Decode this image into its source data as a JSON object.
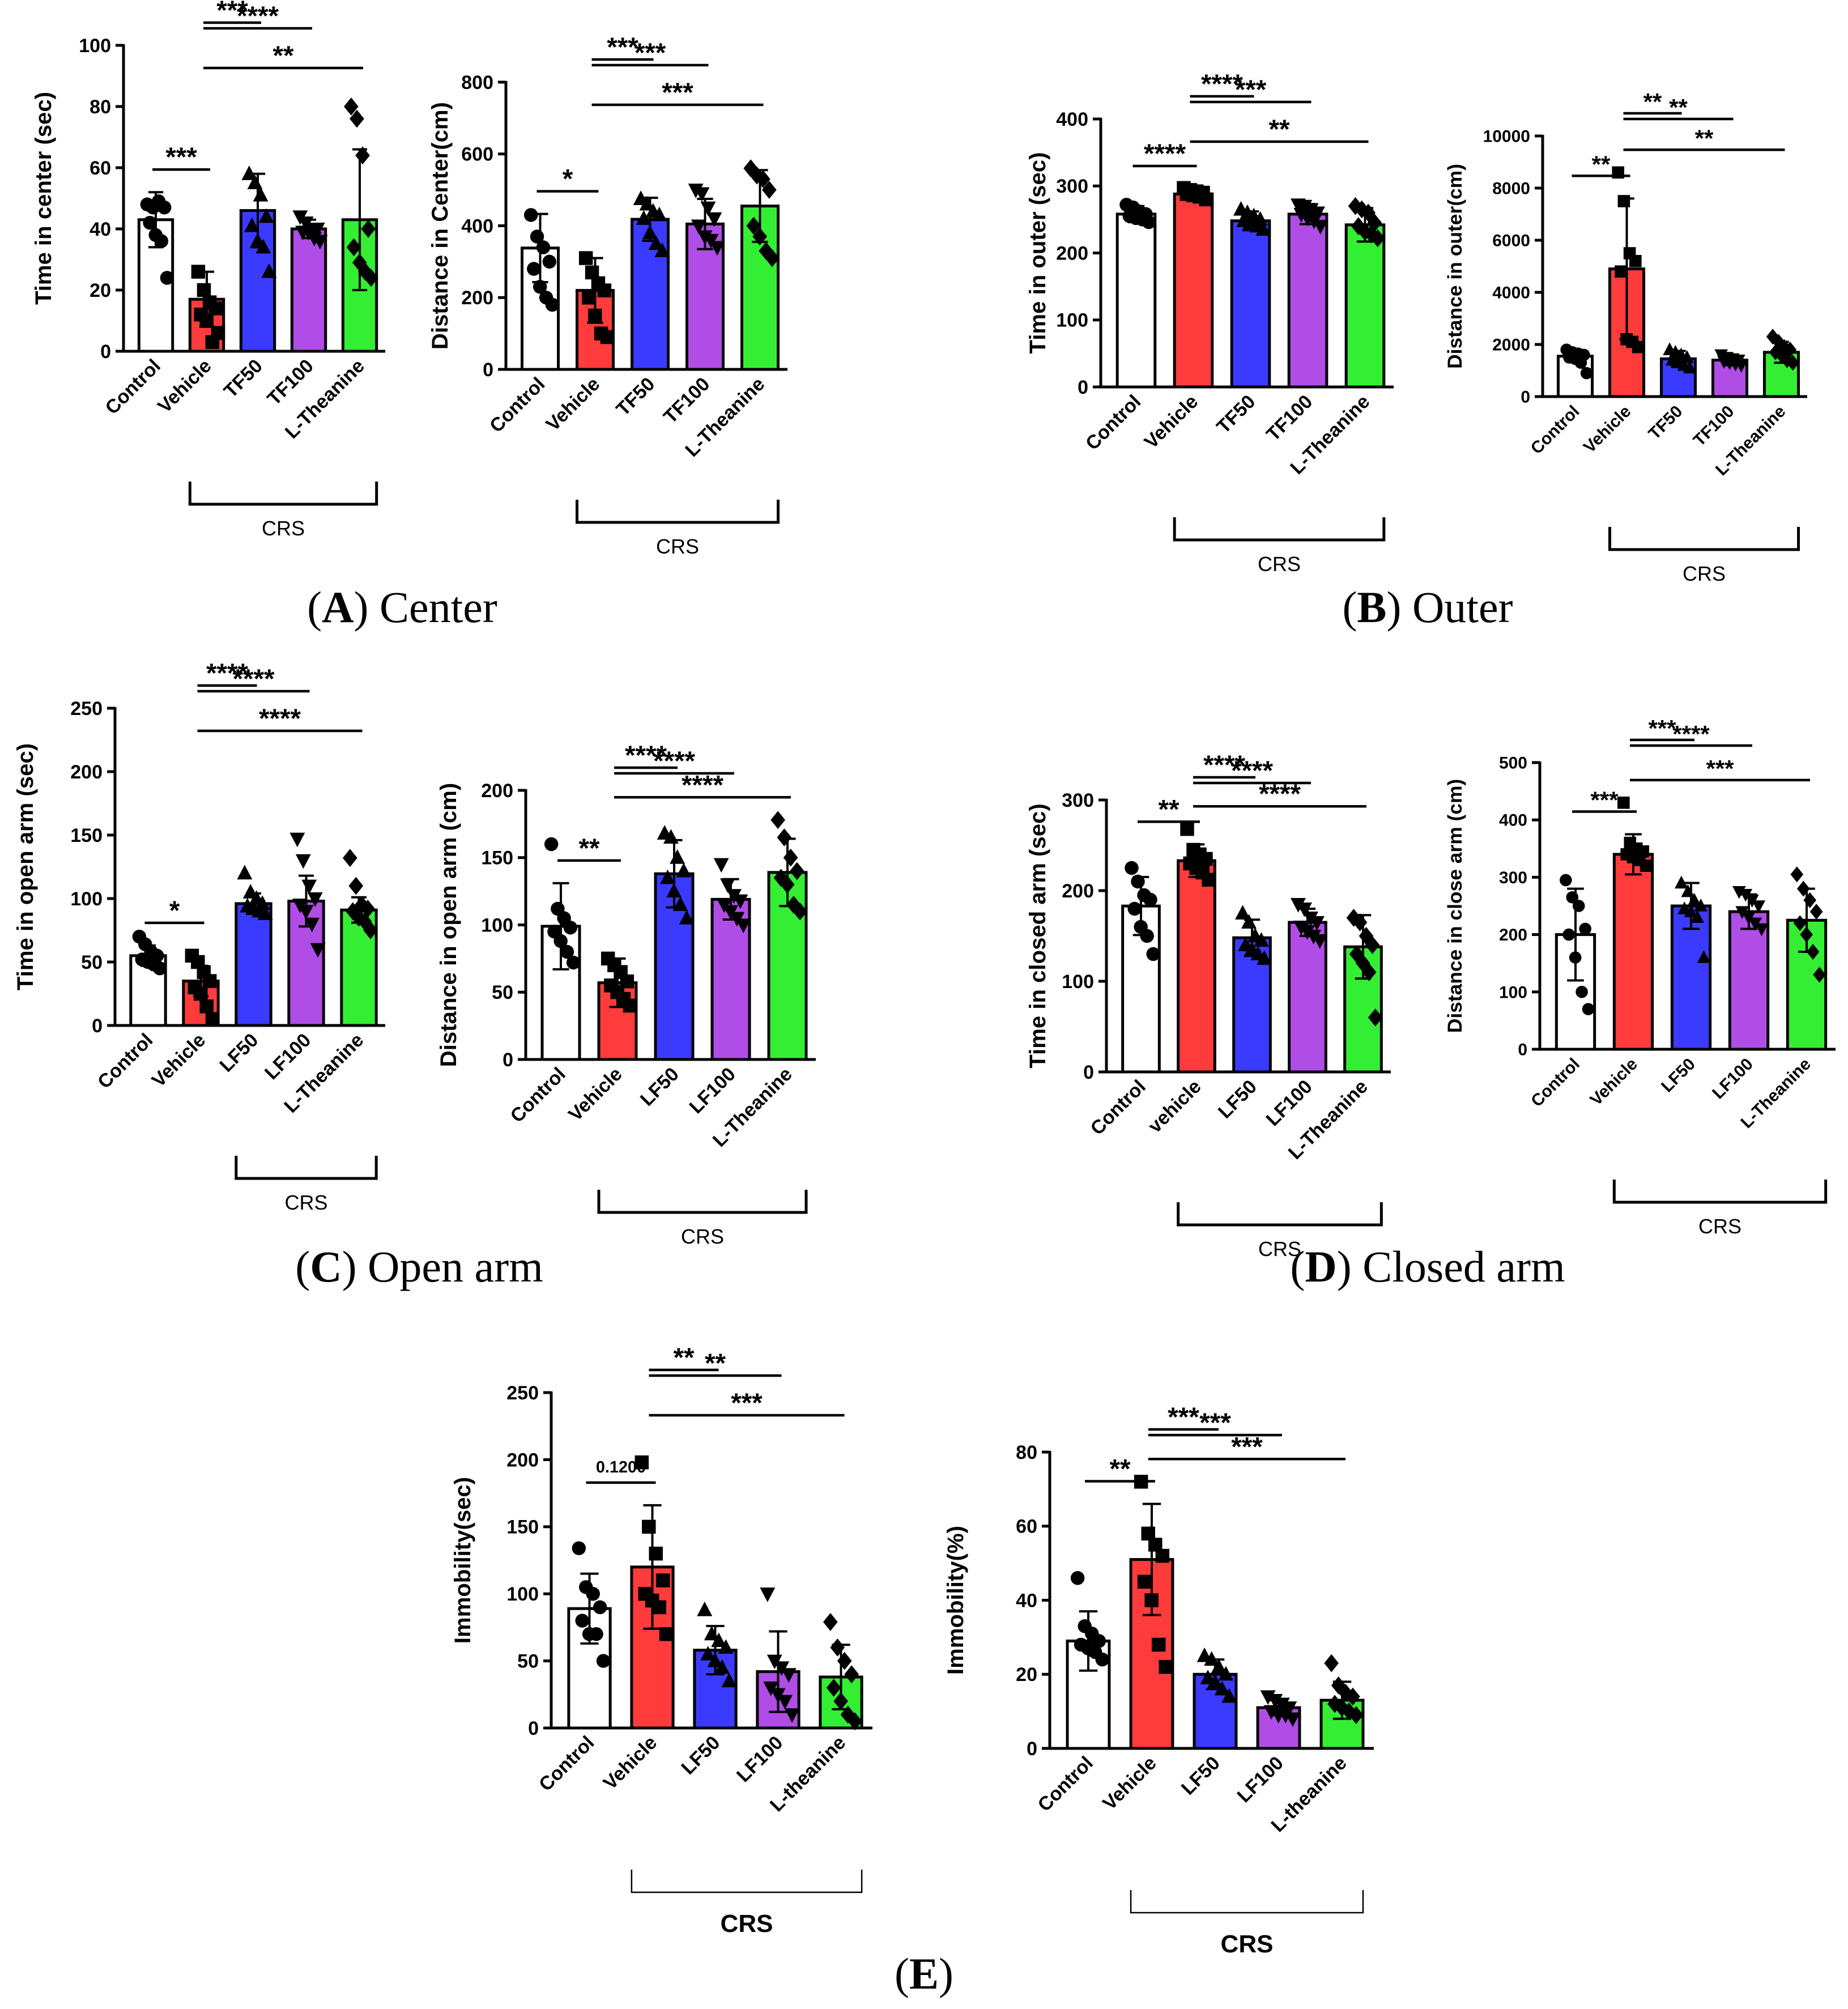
{
  "colors": {
    "Control": "#ffffff",
    "Vehicle": "#ff3b3b",
    "vehicle": "#ff3b3b",
    "TF50": "#3b3bff",
    "TF100": "#b04de6",
    "LF50": "#3b3bff",
    "LF100": "#b04de6",
    "L-Theanine": "#33ee33",
    "L-theanine": "#33ee33"
  },
  "captions": {
    "A": {
      "letter": "A",
      "title": "Center"
    },
    "B": {
      "letter": "B",
      "title": "Outer"
    },
    "C": {
      "letter": "C",
      "title": "Open arm"
    },
    "D": {
      "letter": "D",
      "title": "Closed arm"
    },
    "E": {
      "letter": "E",
      "title": ""
    }
  },
  "chart_data": [
    {
      "id": "A1",
      "panel": "A",
      "type": "bar",
      "ylabel": "Time in center (sec)",
      "ylim": [
        0,
        100
      ],
      "yticks": [
        0,
        20,
        40,
        60,
        80,
        100
      ],
      "categories": [
        "Control",
        "Vehicle",
        "TF50",
        "TF100",
        "L-Theanine"
      ],
      "values": [
        43,
        17,
        46,
        40,
        43
      ],
      "errors": [
        9,
        9,
        12,
        3,
        23
      ],
      "points": [
        [
          48,
          47,
          49,
          47,
          42,
          38,
          36,
          24
        ],
        [
          26,
          20,
          16,
          14,
          12,
          10,
          3,
          6
        ],
        [
          58,
          55,
          51,
          44,
          41,
          36,
          34,
          26
        ],
        [
          44,
          42,
          40,
          40,
          39,
          39,
          37,
          36
        ],
        [
          80,
          76,
          64,
          40,
          34,
          29,
          26,
          24
        ]
      ],
      "markers": [
        "circle",
        "square",
        "triangle",
        "triangle-down",
        "diamond"
      ],
      "group_label": "CRS",
      "group_range": [
        1,
        4
      ],
      "comparisons": [
        {
          "from": 0,
          "to": 1,
          "label": "***"
        },
        {
          "from": 1,
          "to": 2,
          "label": "***"
        },
        {
          "from": 1,
          "to": 3,
          "label": "****"
        },
        {
          "from": 1,
          "to": 4,
          "label": "**"
        }
      ]
    },
    {
      "id": "A2",
      "panel": "A",
      "type": "bar",
      "ylabel": "Distance in Center(cm)",
      "ylim": [
        0,
        800
      ],
      "yticks": [
        0,
        200,
        400,
        600,
        800
      ],
      "categories": [
        "Control",
        "Vehicle",
        "TF50",
        "TF100",
        "L-Theanine"
      ],
      "values": [
        338,
        220,
        418,
        405,
        455
      ],
      "errors": [
        95,
        90,
        60,
        70,
        100
      ],
      "points": [
        [
          430,
          370,
          340,
          300,
          280,
          230,
          200,
          180
        ],
        [
          310,
          270,
          240,
          220,
          200,
          150,
          100,
          90
        ],
        [
          475,
          460,
          440,
          430,
          420,
          380,
          350,
          330
        ],
        [
          500,
          490,
          450,
          420,
          400,
          370,
          360,
          340
        ],
        [
          560,
          540,
          530,
          500,
          400,
          370,
          330,
          310
        ]
      ],
      "markers": [
        "circle",
        "square",
        "triangle",
        "triangle-down",
        "diamond"
      ],
      "group_label": "CRS",
      "group_range": [
        1,
        4
      ],
      "comparisons": [
        {
          "from": 0,
          "to": 1,
          "label": "*"
        },
        {
          "from": 1,
          "to": 2,
          "label": "***"
        },
        {
          "from": 1,
          "to": 3,
          "label": "***"
        },
        {
          "from": 1,
          "to": 4,
          "label": "***"
        }
      ]
    },
    {
      "id": "B1",
      "panel": "B",
      "type": "bar",
      "ylabel": "Time in outer (sec)",
      "ylim": [
        0,
        400
      ],
      "yticks": [
        0,
        100,
        200,
        300,
        400
      ],
      "categories": [
        "Control",
        "Vehicle",
        "TF50",
        "TF100",
        "L-Theanine"
      ],
      "values": [
        258,
        288,
        248,
        258,
        242
      ],
      "errors": [
        12,
        8,
        14,
        15,
        25
      ],
      "points": [
        [
          272,
          268,
          262,
          258,
          255,
          252,
          250,
          246
        ],
        [
          297,
          294,
          292,
          290,
          288,
          286,
          284,
          280
        ],
        [
          265,
          260,
          255,
          250,
          248,
          245,
          240,
          235
        ],
        [
          272,
          270,
          265,
          260,
          258,
          252,
          248,
          240
        ],
        [
          270,
          265,
          260,
          245,
          240,
          232,
          228,
          222
        ]
      ],
      "markers": [
        "circle",
        "square",
        "triangle",
        "triangle-down",
        "diamond"
      ],
      "group_label": "CRS",
      "group_range": [
        1,
        4
      ],
      "comparisons": [
        {
          "from": 0,
          "to": 1,
          "label": "****"
        },
        {
          "from": 1,
          "to": 2,
          "label": "****"
        },
        {
          "from": 1,
          "to": 3,
          "label": "***"
        },
        {
          "from": 1,
          "to": 4,
          "label": "**"
        }
      ]
    },
    {
      "id": "B2",
      "panel": "B",
      "type": "bar",
      "ylabel": "Distance in outer(cm)",
      "ylim": [
        0,
        10000
      ],
      "yticks": [
        0,
        2000,
        4000,
        6000,
        8000,
        10000
      ],
      "categories": [
        "Control",
        "Vehicle",
        "TF50",
        "TF100",
        "L-Theanine"
      ],
      "values": [
        1550,
        4900,
        1450,
        1400,
        1700
      ],
      "errors": [
        200,
        2700,
        300,
        200,
        400
      ],
      "points": [
        [
          1800,
          1700,
          1650,
          1600,
          1500,
          1450,
          1300,
          900
        ],
        [
          8600,
          7500,
          5500,
          5200,
          4800,
          2200,
          2100,
          1900
        ],
        [
          1800,
          1700,
          1600,
          1500,
          1400,
          1300,
          1200,
          1100
        ],
        [
          1600,
          1500,
          1450,
          1400,
          1350,
          1300,
          1250,
          1200
        ],
        [
          2300,
          2100,
          1900,
          1800,
          1700,
          1600,
          1400,
          1300
        ]
      ],
      "markers": [
        "circle",
        "square",
        "triangle",
        "triangle-down",
        "diamond"
      ],
      "group_label": "CRS",
      "group_range": [
        1,
        4
      ],
      "comparisons": [
        {
          "from": 0,
          "to": 1,
          "label": "**"
        },
        {
          "from": 1,
          "to": 2,
          "label": "**"
        },
        {
          "from": 1,
          "to": 3,
          "label": "**"
        },
        {
          "from": 1,
          "to": 4,
          "label": "**"
        }
      ]
    },
    {
      "id": "C1",
      "panel": "C",
      "type": "bar",
      "ylabel": "Time in open arm (sec)",
      "ylim": [
        0,
        250
      ],
      "yticks": [
        0,
        50,
        100,
        150,
        200,
        250
      ],
      "categories": [
        "Control",
        "Vehicle",
        "LF50",
        "LF100",
        "L-Theanine"
      ],
      "values": [
        55,
        35,
        96,
        98,
        91
      ],
      "errors": [
        8,
        12,
        8,
        20,
        10
      ],
      "points": [
        [
          70,
          64,
          58,
          55,
          52,
          50,
          48,
          45
        ],
        [
          55,
          50,
          42,
          35,
          30,
          25,
          15,
          5
        ],
        [
          120,
          105,
          100,
          96,
          94,
          92,
          90,
          88
        ],
        [
          147,
          130,
          110,
          100,
          95,
          90,
          80,
          60
        ],
        [
          132,
          110,
          95,
          92,
          90,
          85,
          82,
          75
        ]
      ],
      "markers": [
        "circle",
        "square",
        "triangle",
        "triangle-down",
        "diamond"
      ],
      "group_label": "CRS",
      "group_range": [
        2,
        4
      ],
      "comparisons": [
        {
          "from": 0,
          "to": 1,
          "label": "*"
        },
        {
          "from": 1,
          "to": 2,
          "label": "****"
        },
        {
          "from": 1,
          "to": 3,
          "label": "****"
        },
        {
          "from": 1,
          "to": 4,
          "label": "****"
        }
      ]
    },
    {
      "id": "C2",
      "panel": "C",
      "type": "bar",
      "ylabel": "Distance in open arm (cm)",
      "ylim": [
        0,
        200
      ],
      "yticks": [
        0,
        50,
        100,
        150,
        200
      ],
      "categories": [
        "Control",
        "Vehicle",
        "LF50",
        "LF100",
        "L-Theanine"
      ],
      "values": [
        99,
        57,
        138,
        119,
        139
      ],
      "errors": [
        32,
        18,
        25,
        15,
        25
      ],
      "points": [
        [
          160,
          112,
          105,
          98,
          95,
          88,
          80,
          72
        ],
        [
          75,
          70,
          65,
          58,
          55,
          50,
          45,
          40
        ],
        [
          168,
          165,
          150,
          140,
          135,
          125,
          115,
          105
        ],
        [
          145,
          130,
          122,
          118,
          115,
          110,
          105,
          100
        ],
        [
          178,
          165,
          150,
          140,
          135,
          130,
          115,
          110
        ]
      ],
      "markers": [
        "circle",
        "square",
        "triangle",
        "triangle-down",
        "diamond"
      ],
      "group_label": "CRS",
      "group_range": [
        1,
        4
      ],
      "comparisons": [
        {
          "from": 0,
          "to": 1,
          "label": "**"
        },
        {
          "from": 1,
          "to": 2,
          "label": "****"
        },
        {
          "from": 1,
          "to": 3,
          "label": "****"
        },
        {
          "from": 1,
          "to": 4,
          "label": "****"
        }
      ]
    },
    {
      "id": "D1",
      "panel": "D",
      "type": "bar",
      "ylabel": "Time in closed arm (sec)",
      "ylim": [
        0,
        300
      ],
      "yticks": [
        0,
        100,
        200,
        300
      ],
      "categories": [
        "Control",
        "vehicle",
        "LF50",
        "LF100",
        "L-Theanine"
      ],
      "values": [
        183,
        233,
        148,
        165,
        138
      ],
      "errors": [
        32,
        18,
        20,
        15,
        35
      ],
      "points": [
        [
          225,
          210,
          195,
          190,
          180,
          160,
          150,
          130
        ],
        [
          268,
          245,
          240,
          235,
          230,
          225,
          220,
          212
        ],
        [
          175,
          165,
          150,
          145,
          140,
          135,
          130,
          125
        ],
        [
          185,
          180,
          170,
          165,
          160,
          155,
          150,
          145
        ],
        [
          170,
          165,
          150,
          140,
          130,
          120,
          110,
          60
        ]
      ],
      "markers": [
        "circle",
        "square",
        "triangle",
        "triangle-down",
        "diamond"
      ],
      "group_label": "CRS",
      "group_range": [
        1,
        4
      ],
      "comparisons": [
        {
          "from": 0,
          "to": 1,
          "label": "**"
        },
        {
          "from": 1,
          "to": 2,
          "label": "****"
        },
        {
          "from": 1,
          "to": 3,
          "label": "****"
        },
        {
          "from": 1,
          "to": 4,
          "label": "****"
        }
      ]
    },
    {
      "id": "D2",
      "panel": "D",
      "type": "bar",
      "ylabel": "Distance in close arm (cm)",
      "ylim": [
        0,
        500
      ],
      "yticks": [
        0,
        100,
        200,
        300,
        400,
        500
      ],
      "categories": [
        "Control",
        "Vehicle",
        "LF50",
        "LF100",
        "L-Theanine"
      ],
      "values": [
        200,
        340,
        250,
        240,
        225
      ],
      "errors": [
        80,
        35,
        40,
        30,
        55
      ],
      "points": [
        [
          295,
          265,
          250,
          210,
          200,
          160,
          100,
          70
        ],
        [
          430,
          360,
          350,
          345,
          340,
          335,
          330,
          320
        ],
        [
          290,
          275,
          260,
          250,
          245,
          240,
          230,
          160
        ],
        [
          275,
          270,
          260,
          250,
          240,
          230,
          220,
          210
        ],
        [
          305,
          280,
          260,
          240,
          220,
          200,
          170,
          130
        ]
      ],
      "markers": [
        "circle",
        "square",
        "triangle",
        "triangle-down",
        "diamond"
      ],
      "group_label": "CRS",
      "group_range": [
        1,
        4
      ],
      "comparisons": [
        {
          "from": 0,
          "to": 1,
          "label": "***"
        },
        {
          "from": 1,
          "to": 2,
          "label": "***"
        },
        {
          "from": 1,
          "to": 3,
          "label": "****"
        },
        {
          "from": 1,
          "to": 4,
          "label": "***"
        }
      ]
    },
    {
      "id": "E1",
      "panel": "E",
      "type": "bar",
      "ylabel": "Immobility(sec)",
      "ylim": [
        0,
        250
      ],
      "yticks": [
        0,
        50,
        100,
        150,
        200,
        250
      ],
      "categories": [
        "Control",
        "Vehicle",
        "LF50",
        "LF100",
        "L-theanine"
      ],
      "values": [
        89,
        120,
        58,
        42,
        38
      ],
      "errors": [
        26,
        46,
        18,
        30,
        24
      ],
      "points": [
        [
          134,
          105,
          100,
          90,
          80,
          70,
          70,
          50
        ],
        [
          198,
          150,
          130,
          110,
          100,
          95,
          90,
          70
        ],
        [
          88,
          70,
          65,
          60,
          55,
          50,
          45,
          35
        ],
        [
          100,
          50,
          45,
          40,
          30,
          25,
          20,
          10
        ],
        [
          79,
          60,
          50,
          40,
          30,
          20,
          10,
          5
        ]
      ],
      "markers": [
        "circle",
        "square",
        "triangle",
        "triangle-down",
        "diamond"
      ],
      "group_label": "CRS",
      "group_range": [
        1,
        4
      ],
      "group_bold": true,
      "comparisons": [
        {
          "from": 0,
          "to": 1,
          "label": "0.1200"
        },
        {
          "from": 1,
          "to": 2,
          "label": "**"
        },
        {
          "from": 1,
          "to": 3,
          "label": "**"
        },
        {
          "from": 1,
          "to": 4,
          "label": "***"
        }
      ]
    },
    {
      "id": "E2",
      "panel": "E",
      "type": "bar",
      "ylabel": "Immobility(%)",
      "ylim": [
        0,
        80
      ],
      "yticks": [
        0,
        20,
        40,
        60,
        80
      ],
      "categories": [
        "Control",
        "Vehicle",
        "LF50",
        "LF100",
        "L-theanine"
      ],
      "values": [
        29,
        51,
        20,
        11,
        13
      ],
      "errors": [
        8,
        15,
        4,
        2,
        5
      ],
      "points": [
        [
          46,
          33,
          31,
          29,
          28,
          27,
          26,
          24
        ],
        [
          72,
          58,
          55,
          52,
          45,
          40,
          28,
          22
        ],
        [
          25,
          24,
          22,
          20,
          19,
          18,
          16,
          14
        ],
        [
          14,
          13,
          12,
          11,
          10,
          9,
          9,
          8
        ],
        [
          23,
          17,
          15,
          14,
          12,
          11,
          10,
          9
        ]
      ],
      "markers": [
        "circle",
        "square",
        "triangle",
        "triangle-down",
        "diamond"
      ],
      "group_label": "CRS",
      "group_range": [
        1,
        4
      ],
      "group_bold": true,
      "comparisons": [
        {
          "from": 0,
          "to": 1,
          "label": "**"
        },
        {
          "from": 1,
          "to": 2,
          "label": "***"
        },
        {
          "from": 1,
          "to": 3,
          "label": "***"
        },
        {
          "from": 1,
          "to": 4,
          "label": "***"
        }
      ]
    }
  ]
}
